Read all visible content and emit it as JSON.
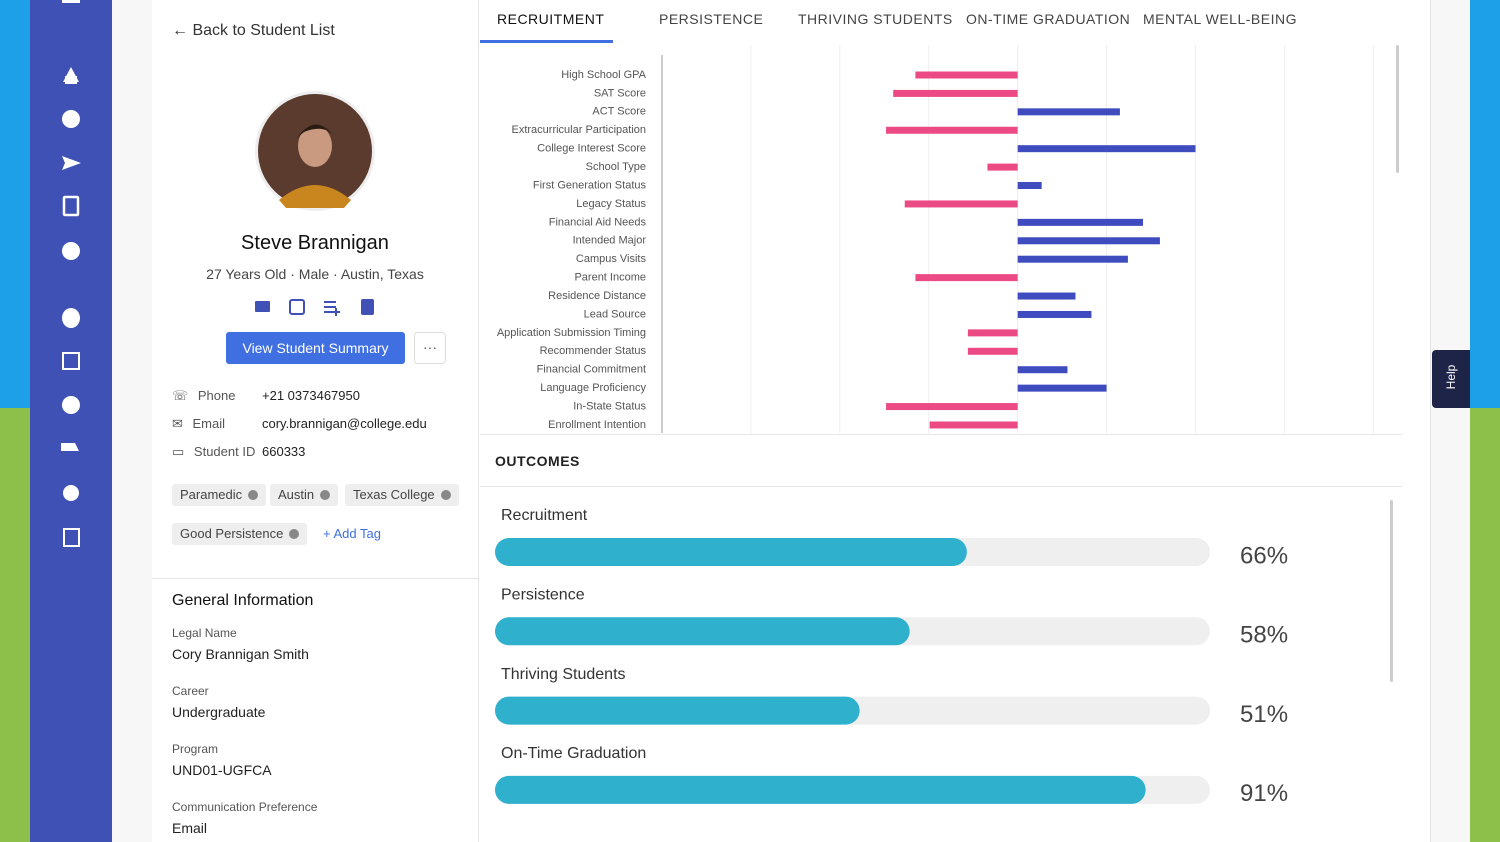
{
  "nav": {
    "back": "Back to Student List"
  },
  "profile": {
    "name": "Steve Brannigan",
    "age": "27 Years Old",
    "gender": "Male",
    "location": "Austin, Texas",
    "button": "View Student Summary",
    "more": "···"
  },
  "contact": [
    {
      "label": "Phone",
      "value": "+21 0373467950"
    },
    {
      "label": "Email",
      "value": "cory.brannigan@college.edu"
    },
    {
      "label": "Student ID",
      "value": "660333"
    }
  ],
  "tags": [
    "Paramedic",
    "Austin",
    "Texas College",
    "Good Persistence"
  ],
  "add_tag": "Add Tag",
  "general": {
    "title": "General Information",
    "fields": [
      {
        "label": "Legal Name",
        "value": "Cory Brannigan Smith"
      },
      {
        "label": "Career",
        "value": "Undergraduate"
      },
      {
        "label": "Program",
        "value": "UND01-UGFCA"
      },
      {
        "label": "Communication Preference",
        "value": "Email"
      }
    ]
  },
  "tabs": [
    "RECRUITMENT",
    "PERSISTENCE",
    "THRIVING STUDENTS",
    "ON-TIME GRADUATION",
    "MENTAL WELL-BEING"
  ],
  "outcomes_title": "OUTCOMES",
  "help": "Help",
  "chart_data": [
    {
      "type": "diverging-bar",
      "categories": [
        "High School GPA",
        "SAT Score",
        "ACT Score",
        "Extracurricular Participation",
        "College Interest Score",
        "School Type",
        "First Generation Status",
        "Legacy Status",
        "Financial Aid Needs",
        "Intended Major",
        "Campus Visits",
        "Parent Income",
        "Residence Distance",
        "Lead Source",
        "Application Submission Timing",
        "Recommender Status",
        "Financial Commitment",
        "Language Proficiency",
        "In-State Status",
        "Enrollment Intention"
      ],
      "values": [
        -1.15,
        -1.4,
        1.15,
        -1.48,
        2.0,
        -0.34,
        0.27,
        -1.27,
        1.41,
        1.6,
        1.24,
        -1.15,
        0.65,
        0.83,
        -0.56,
        -0.56,
        0.56,
        1.0,
        -1.48,
        -0.99
      ],
      "positive_color": "#3f4cbf",
      "negative_color": "#ec4a85",
      "xlim": [
        -4,
        4.3
      ],
      "xticks": [
        -3,
        -2,
        -1,
        0,
        1,
        2,
        3,
        4
      ],
      "grid": true
    },
    {
      "type": "progress",
      "categories": [
        "Recruitment",
        "Persistence",
        "Thriving Students",
        "On-Time Graduation"
      ],
      "values": [
        66,
        58,
        51,
        91
      ],
      "value_labels": [
        "66%",
        "58%",
        "51%",
        "91%"
      ],
      "xlim": [
        0,
        100
      ],
      "color": "#2fb0cc"
    }
  ]
}
